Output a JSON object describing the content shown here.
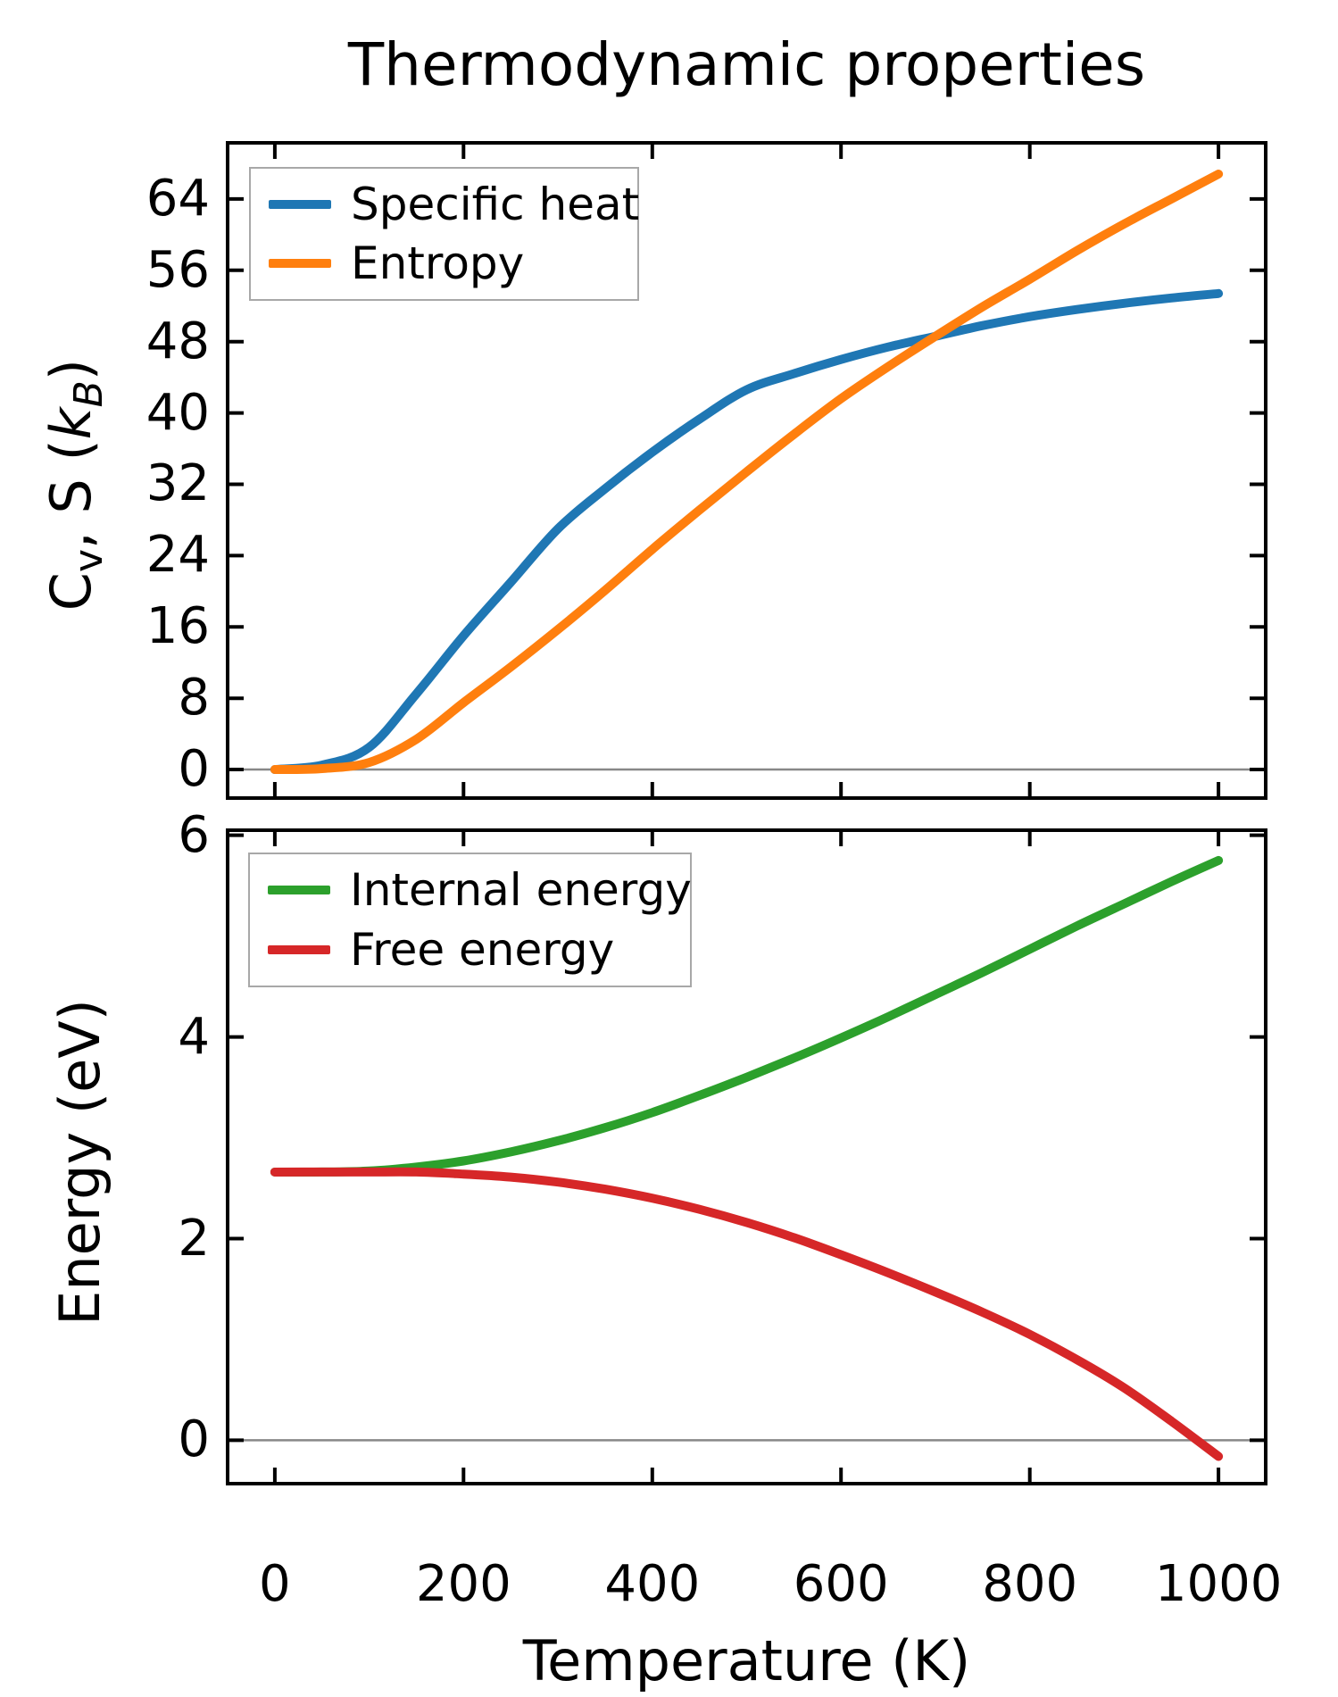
{
  "figure": {
    "title": "Thermodynamic properties",
    "xlabel": "Temperature (K)",
    "background": "#ffffff",
    "spine_color": "#000000",
    "zero_line_color": "#888888"
  },
  "ylabels": {
    "top": {
      "p1": "C",
      "sub1": "v",
      "p2": ", S (",
      "p3": "k",
      "sub2": "B",
      "p4": ")"
    },
    "bottom": "Energy (eV)"
  },
  "chart_data": [
    {
      "type": "line",
      "title": "Thermodynamic properties",
      "xlabel": "",
      "ylabel": "Cv, S (kB)",
      "xlim": [
        -50,
        1050
      ],
      "ylim": [
        -3.2,
        70.3
      ],
      "xticks": [
        0,
        200,
        400,
        600,
        800,
        1000
      ],
      "show_xtick_labels": false,
      "yticks": [
        0,
        8,
        16,
        24,
        32,
        40,
        48,
        56,
        64
      ],
      "grid": false,
      "zero_line": true,
      "legend_position": "upper left",
      "x": [
        0,
        50,
        100,
        150,
        200,
        250,
        300,
        350,
        400,
        450,
        500,
        550,
        600,
        650,
        700,
        750,
        800,
        850,
        900,
        950,
        1000
      ],
      "series": [
        {
          "name": "Specific heat",
          "color": "#1f77b4",
          "values": [
            0,
            0.5,
            2.5,
            8.5,
            15.0,
            21.0,
            27.0,
            31.5,
            35.6,
            39.3,
            42.6,
            44.4,
            46.0,
            47.4,
            48.6,
            49.8,
            50.8,
            51.6,
            52.3,
            52.9,
            53.4
          ]
        },
        {
          "name": "Entropy",
          "color": "#ff7f0e",
          "values": [
            0,
            0.1,
            0.8,
            3.4,
            7.5,
            11.5,
            15.7,
            20.1,
            24.7,
            29.1,
            33.4,
            37.6,
            41.6,
            45.2,
            48.6,
            51.9,
            55.0,
            58.2,
            61.2,
            64.0,
            66.8
          ]
        }
      ]
    },
    {
      "type": "line",
      "title": "",
      "xlabel": "Temperature (K)",
      "ylabel": "Energy (eV)",
      "xlim": [
        -50,
        1050
      ],
      "ylim": [
        -0.43,
        6.05
      ],
      "xticks": [
        0,
        200,
        400,
        600,
        800,
        1000
      ],
      "show_xtick_labels": true,
      "yticks": [
        0,
        2,
        4,
        6
      ],
      "grid": false,
      "zero_line": true,
      "legend_position": "upper left",
      "x": [
        0,
        50,
        100,
        150,
        200,
        250,
        300,
        350,
        400,
        450,
        500,
        550,
        600,
        650,
        700,
        750,
        800,
        850,
        900,
        950,
        1000
      ],
      "series": [
        {
          "name": "Internal energy",
          "color": "#2ca02c",
          "values": [
            2.66,
            2.66,
            2.67,
            2.71,
            2.77,
            2.86,
            2.97,
            3.1,
            3.25,
            3.42,
            3.6,
            3.79,
            3.99,
            4.2,
            4.42,
            4.64,
            4.87,
            5.1,
            5.32,
            5.54,
            5.75
          ]
        },
        {
          "name": "Free energy",
          "color": "#d62728",
          "values": [
            2.66,
            2.66,
            2.66,
            2.66,
            2.64,
            2.61,
            2.56,
            2.49,
            2.4,
            2.29,
            2.16,
            2.01,
            1.84,
            1.66,
            1.47,
            1.27,
            1.05,
            0.8,
            0.52,
            0.19,
            -0.16
          ]
        }
      ]
    }
  ]
}
